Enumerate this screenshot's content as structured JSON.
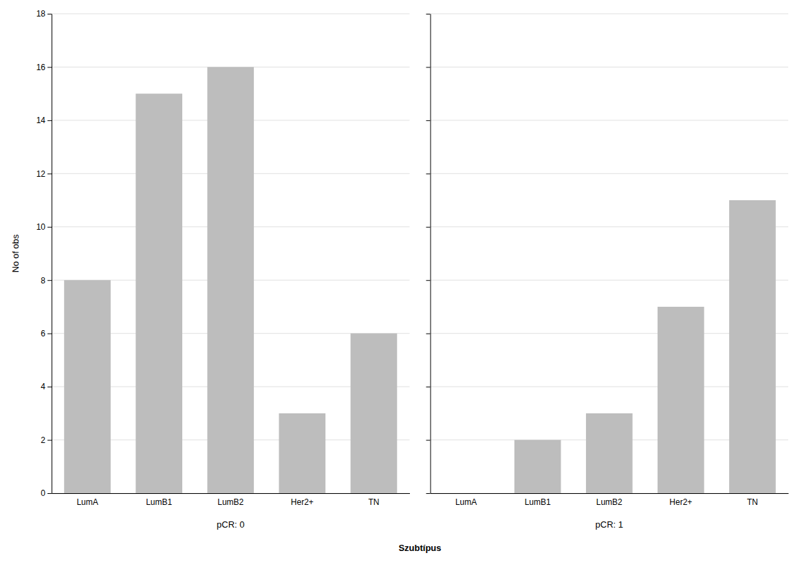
{
  "chart_data": [
    {
      "type": "bar",
      "title": "pCR: 0",
      "categories": [
        "LumA",
        "LumB1",
        "LumB2",
        "Her2+",
        "TN"
      ],
      "values": [
        8,
        15,
        16,
        3,
        6
      ],
      "color": "#bdbdbd",
      "ylabel": "No of obs",
      "ylim": [
        0,
        18
      ],
      "yticks": [
        0,
        2,
        4,
        6,
        8,
        10,
        12,
        14,
        16,
        18
      ],
      "grid": true
    },
    {
      "type": "bar",
      "title": "pCR: 1",
      "categories": [
        "LumA",
        "LumB1",
        "LumB2",
        "Her2+",
        "TN"
      ],
      "values": [
        0,
        2,
        3,
        7,
        11
      ],
      "color": "#bdbdbd",
      "ylim": [
        0,
        18
      ],
      "yticks": [
        0,
        2,
        4,
        6,
        8,
        10,
        12,
        14,
        16,
        18
      ],
      "grid": true,
      "tick_labels": "x"
    }
  ],
  "xlabel": "Szubtípus"
}
